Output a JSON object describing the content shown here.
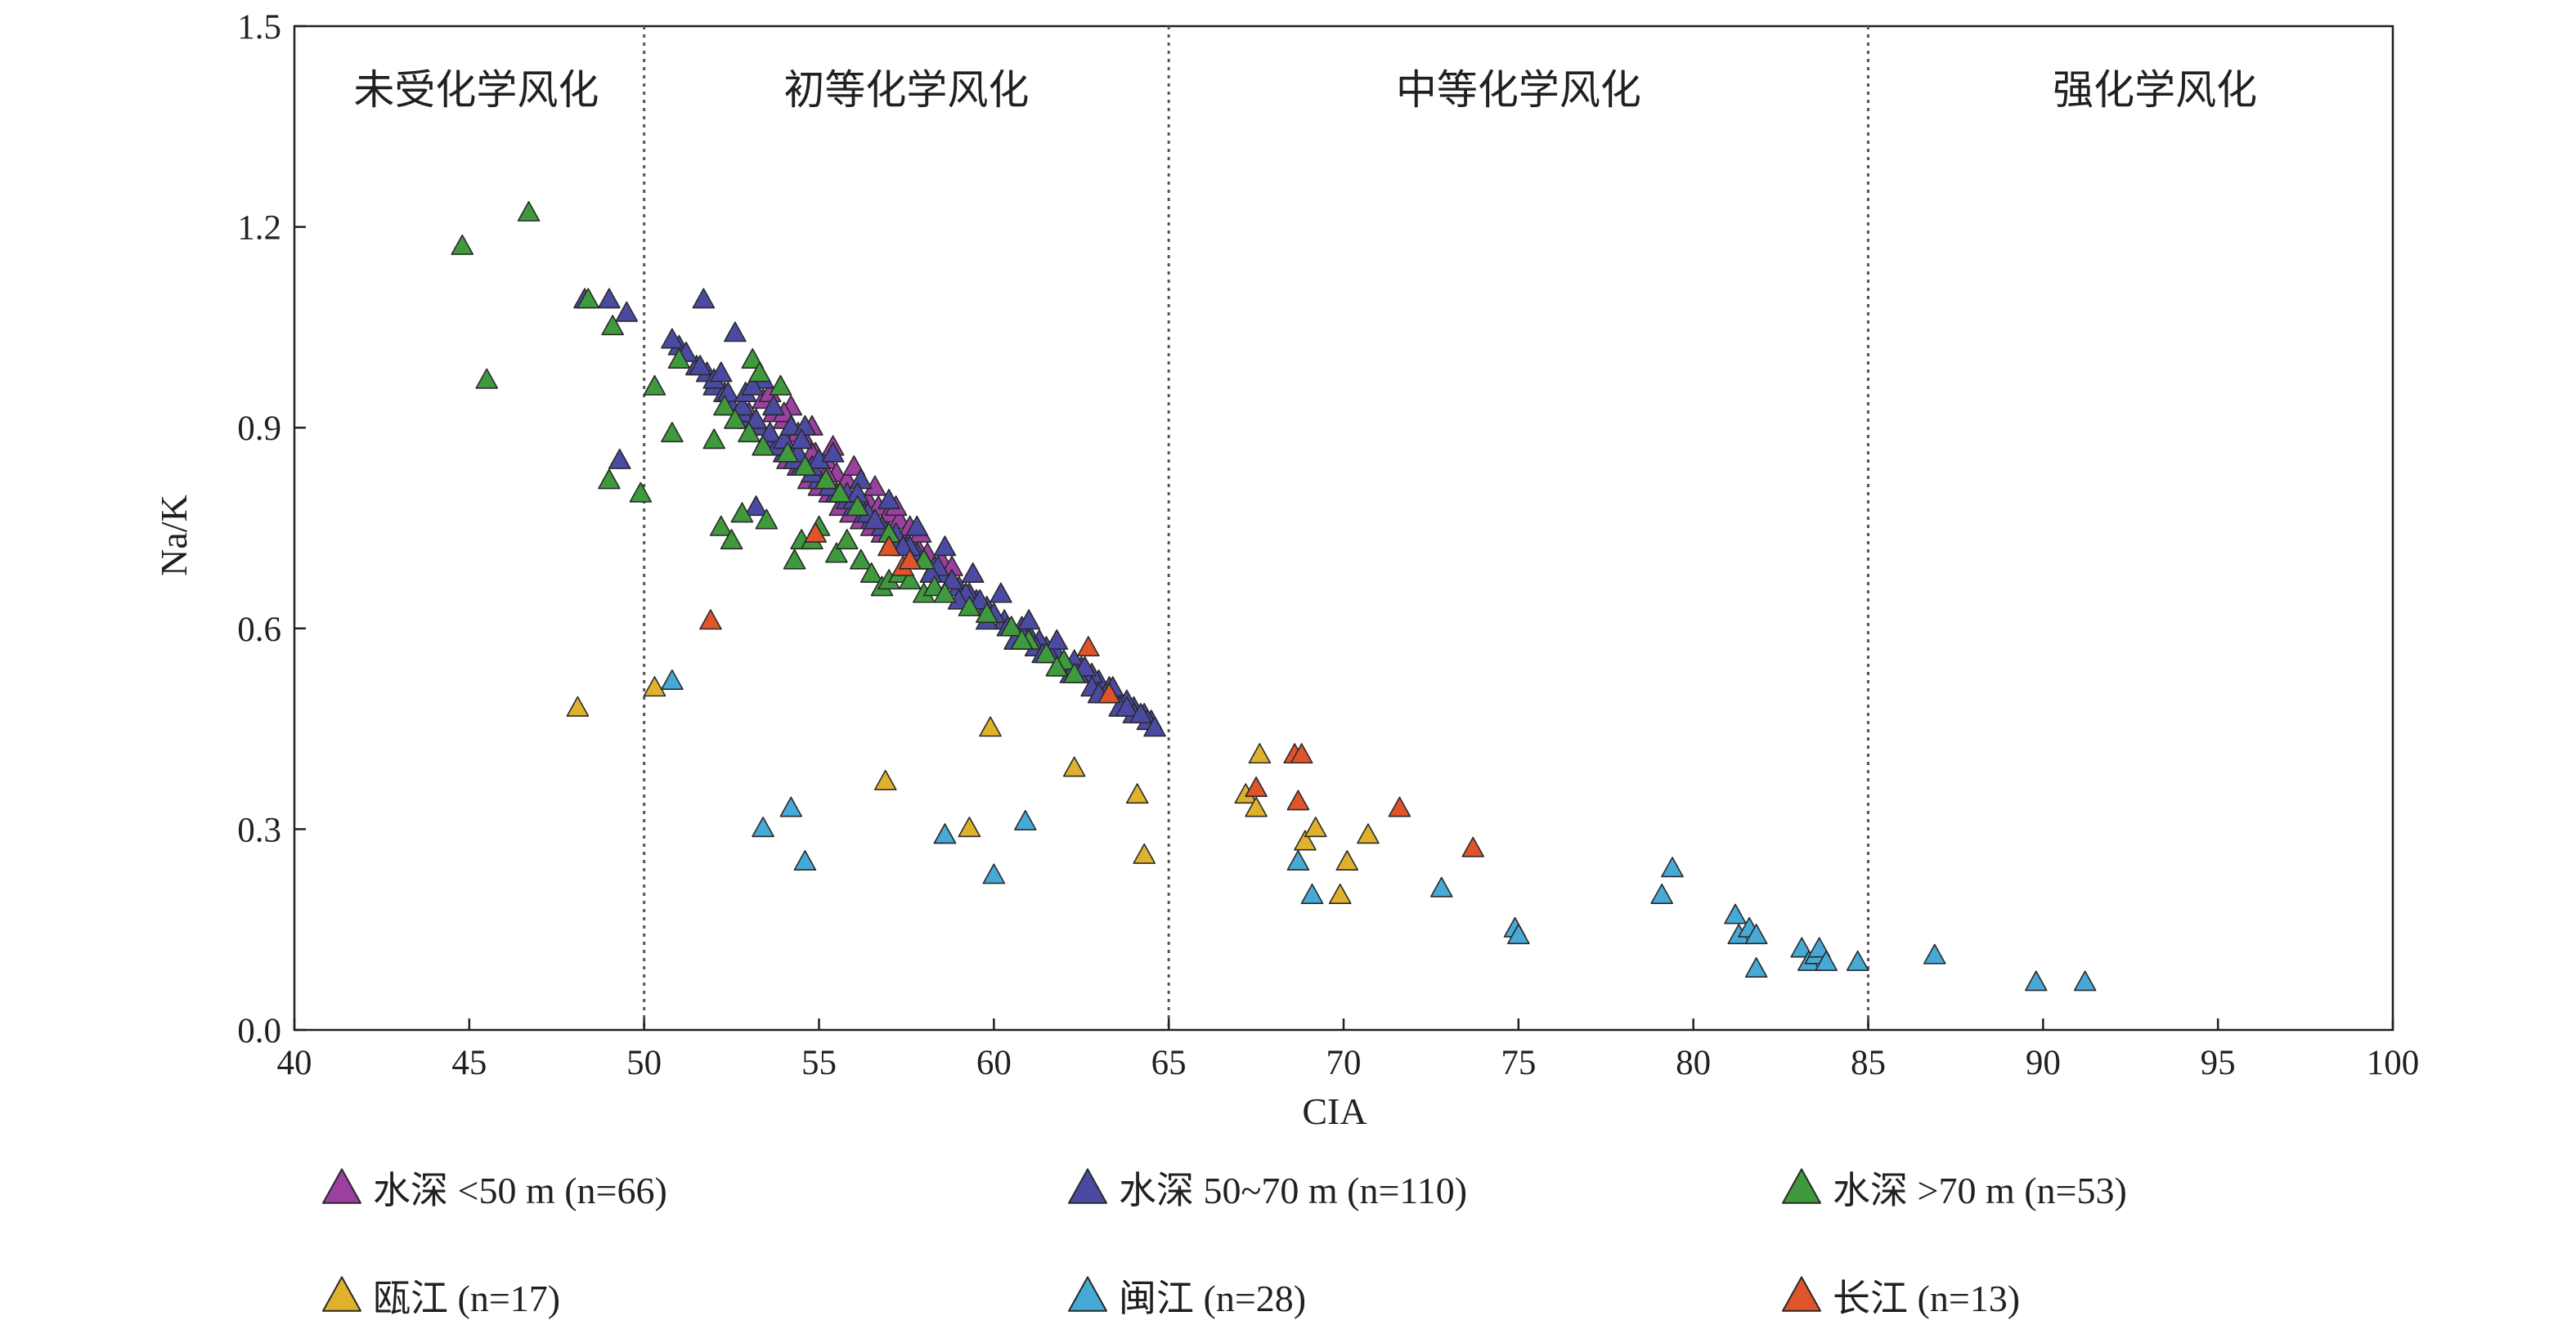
{
  "chart_data": {
    "type": "scatter",
    "xlabel": "CIA",
    "ylabel": "Na/K",
    "xlim": [
      40,
      100
    ],
    "ylim": [
      0,
      1.5
    ],
    "x_ticks": [
      "40",
      "45",
      "50",
      "55",
      "60",
      "65",
      "70",
      "75",
      "80",
      "85",
      "90",
      "95",
      "100"
    ],
    "y_ticks": [
      "0.0",
      "0.3",
      "0.6",
      "0.9",
      "1.2",
      "1.5"
    ],
    "x_tick_values": [
      40,
      45,
      50,
      55,
      60,
      65,
      70,
      75,
      80,
      85,
      90,
      95,
      100
    ],
    "y_tick_values": [
      0,
      0.3,
      0.6,
      0.9,
      1.2,
      1.5
    ],
    "grid": false,
    "marker": "triangle",
    "dividers": [
      50,
      65,
      85
    ],
    "regions": [
      {
        "label": "未受化学风化",
        "x_center": 45.2
      },
      {
        "label": "初等化学风化",
        "x_center": 57.5
      },
      {
        "label": "中等化学风化",
        "x_center": 75.0
      },
      {
        "label": "强化学风化",
        "x_center": 93.2
      }
    ],
    "legend_position": "bottom",
    "series": [
      {
        "name": "水深 <50 m",
        "n_label": "(n=66)",
        "color": "#9b3fa0",
        "x": [
          53.0,
          53.3,
          53.6,
          53.9,
          54.2,
          54.5,
          54.8,
          55.1,
          55.4,
          55.7,
          56.0,
          56.3,
          56.6,
          56.9,
          57.2,
          57.5,
          57.8,
          58.1,
          53.2,
          53.5,
          53.8,
          54.1,
          54.4,
          54.7,
          55.0,
          55.3,
          55.6,
          55.9,
          56.2,
          56.5,
          56.8,
          57.1,
          57.4,
          57.7,
          58.0,
          58.3,
          58.6,
          53.4,
          53.7,
          54.0,
          54.3,
          54.6,
          54.9,
          55.2,
          55.5,
          55.8,
          56.1,
          56.4,
          56.7,
          57.0,
          57.3,
          57.6,
          57.9,
          54.2,
          54.8,
          55.4,
          56.0,
          56.6,
          57.2,
          53.6,
          54.0,
          54.4,
          54.8,
          55.2,
          58.5,
          58.8
        ],
        "y": [
          0.92,
          0.9,
          0.89,
          0.87,
          0.86,
          0.84,
          0.83,
          0.81,
          0.8,
          0.79,
          0.78,
          0.77,
          0.76,
          0.75,
          0.74,
          0.73,
          0.72,
          0.71,
          0.9,
          0.88,
          0.87,
          0.85,
          0.84,
          0.82,
          0.81,
          0.8,
          0.78,
          0.77,
          0.76,
          0.75,
          0.74,
          0.73,
          0.72,
          0.71,
          0.7,
          0.69,
          0.68,
          0.94,
          0.92,
          0.91,
          0.89,
          0.88,
          0.86,
          0.85,
          0.83,
          0.82,
          0.8,
          0.79,
          0.78,
          0.77,
          0.76,
          0.75,
          0.74,
          0.93,
          0.9,
          0.87,
          0.84,
          0.81,
          0.78,
          0.95,
          0.92,
          0.89,
          0.86,
          0.83,
          0.7,
          0.69
        ]
      },
      {
        "name": "水深 50~70 m",
        "n_label": "(n=110)",
        "color": "#4b4aa2",
        "x": [
          48.3,
          49.0,
          49.5,
          51.0,
          51.5,
          52.0,
          52.5,
          53.0,
          53.5,
          54.0,
          54.5,
          55.0,
          55.5,
          56.0,
          56.5,
          57.0,
          57.5,
          58.0,
          58.5,
          59.0,
          59.5,
          60.0,
          60.5,
          61.0,
          61.5,
          62.0,
          62.5,
          63.0,
          63.5,
          64.0,
          64.5,
          51.8,
          52.3,
          52.8,
          53.3,
          53.8,
          54.3,
          54.8,
          55.3,
          55.8,
          56.3,
          56.8,
          57.3,
          57.8,
          58.3,
          58.8,
          59.3,
          59.8,
          60.3,
          60.8,
          61.3,
          61.8,
          62.3,
          62.8,
          63.3,
          63.8,
          64.3,
          50.8,
          51.2,
          51.6,
          52.0,
          52.4,
          52.8,
          53.2,
          53.6,
          54.0,
          54.4,
          54.8,
          55.2,
          55.6,
          56.0,
          56.4,
          56.8,
          57.2,
          57.6,
          58.0,
          58.4,
          58.8,
          59.2,
          59.6,
          60.0,
          60.4,
          60.8,
          61.2,
          61.6,
          62.0,
          62.4,
          62.8,
          63.2,
          63.6,
          64.0,
          64.4,
          64.6,
          52.6,
          53.4,
          54.2,
          55.0,
          55.8,
          56.6,
          57.4,
          58.2,
          59.0,
          59.8,
          60.6,
          61.4,
          62.2,
          63.0,
          63.8,
          49.3,
          53.2
        ],
        "y": [
          1.09,
          1.09,
          1.07,
          1.02,
          0.99,
          0.96,
          0.93,
          0.91,
          0.88,
          0.86,
          0.84,
          0.82,
          0.8,
          0.78,
          0.76,
          0.74,
          0.72,
          0.7,
          0.68,
          0.66,
          0.64,
          0.62,
          0.6,
          0.59,
          0.57,
          0.55,
          0.54,
          0.52,
          0.5,
          0.48,
          0.46,
          0.98,
          0.95,
          0.92,
          0.9,
          0.87,
          0.85,
          0.83,
          0.81,
          0.79,
          0.77,
          0.75,
          0.73,
          0.71,
          0.69,
          0.67,
          0.65,
          0.63,
          0.61,
          0.6,
          0.58,
          0.56,
          0.55,
          0.53,
          0.51,
          0.49,
          0.47,
          1.03,
          1.01,
          0.99,
          0.97,
          0.95,
          0.93,
          0.91,
          0.89,
          0.88,
          0.86,
          0.84,
          0.82,
          0.8,
          0.79,
          0.77,
          0.75,
          0.74,
          0.72,
          0.7,
          0.69,
          0.67,
          0.65,
          0.64,
          0.62,
          0.6,
          0.59,
          0.57,
          0.56,
          0.54,
          0.53,
          0.51,
          0.5,
          0.48,
          0.47,
          0.46,
          0.45,
          1.04,
          0.97,
          0.9,
          0.85,
          0.8,
          0.76,
          0.72,
          0.68,
          0.64,
          0.61,
          0.58,
          0.56,
          0.53,
          0.5,
          0.48,
          0.85,
          0.78
        ],
        "x_extra": [
          51.7,
          52.2,
          52.9,
          53.7,
          54.6,
          55.4,
          56.2,
          57.0,
          57.8,
          58.6,
          59.4,
          60.2,
          61.0,
          61.8,
          62.6,
          63.4,
          64.2,
          53.1,
          54.5,
          56.1
        ],
        "y_extra": [
          1.09,
          0.98,
          0.95,
          0.93,
          0.9,
          0.86,
          0.82,
          0.79,
          0.75,
          0.72,
          0.68,
          0.65,
          0.61,
          0.58,
          0.54,
          0.51,
          0.47,
          0.96,
          0.88,
          0.8
        ]
      },
      {
        "name": "水深 >70 m",
        "n_label": "(n=53)",
        "color": "#3f9a3d",
        "x": [
          44.8,
          45.5,
          46.7,
          48.4,
          49.0,
          49.1,
          49.9,
          50.3,
          50.8,
          51.0,
          52.0,
          52.2,
          52.5,
          52.8,
          53.1,
          53.3,
          53.5,
          53.9,
          54.3,
          54.5,
          54.8,
          55.0,
          55.5,
          55.8,
          56.2,
          56.5,
          56.8,
          57.0,
          57.3,
          57.6,
          58.0,
          58.3,
          58.6,
          59.3,
          59.8,
          60.5,
          61.0,
          61.5,
          62.0,
          62.3,
          52.3,
          52.6,
          53.0,
          53.4,
          54.1,
          54.6,
          55.2,
          55.6,
          56.1,
          57.0,
          58.0,
          60.8,
          61.8
        ],
        "y": [
          1.17,
          0.97,
          1.22,
          1.09,
          0.82,
          1.05,
          0.8,
          0.96,
          0.89,
          1.0,
          0.88,
          0.75,
          0.73,
          0.77,
          1.0,
          0.98,
          0.76,
          0.96,
          0.7,
          0.73,
          0.73,
          0.75,
          0.71,
          0.73,
          0.7,
          0.68,
          0.66,
          0.67,
          0.68,
          0.67,
          0.65,
          0.66,
          0.65,
          0.63,
          0.62,
          0.6,
          0.58,
          0.56,
          0.55,
          0.53,
          0.93,
          0.91,
          0.89,
          0.87,
          0.86,
          0.84,
          0.82,
          0.8,
          0.78,
          0.74,
          0.7,
          0.58,
          0.54
        ]
      },
      {
        "name": "瓯江",
        "n_label": "(n=17)",
        "color": "#e0b12c",
        "x": [
          48.1,
          50.3,
          56.9,
          58.6,
          59.3,
          59.9,
          62.3,
          64.1,
          64.3,
          67.2,
          67.5,
          67.6,
          68.9,
          69.2,
          69.9,
          70.1,
          70.7
        ],
        "y": [
          0.48,
          0.51,
          0.37,
          0.29,
          0.3,
          0.45,
          0.39,
          0.35,
          0.26,
          0.35,
          0.33,
          0.41,
          0.28,
          0.3,
          0.2,
          0.25,
          0.29
        ]
      },
      {
        "name": "闽江",
        "n_label": "(n=28)",
        "color": "#47a9d6",
        "x": [
          50.8,
          53.4,
          54.2,
          54.6,
          58.6,
          60.0,
          60.9,
          68.7,
          69.1,
          72.8,
          74.9,
          75.0,
          79.1,
          79.4,
          81.2,
          81.3,
          81.6,
          81.8,
          81.8,
          83.1,
          83.3,
          83.5,
          83.6,
          83.8,
          84.7,
          86.9,
          89.8,
          91.2
        ],
        "y": [
          0.52,
          0.3,
          0.33,
          0.25,
          0.29,
          0.23,
          0.31,
          0.25,
          0.2,
          0.21,
          0.15,
          0.14,
          0.2,
          0.24,
          0.17,
          0.14,
          0.15,
          0.14,
          0.09,
          0.12,
          0.1,
          0.11,
          0.12,
          0.1,
          0.1,
          0.11,
          0.07,
          0.07
        ]
      },
      {
        "name": "长江",
        "n_label": "(n=13)",
        "color": "#e0542a",
        "x": [
          51.9,
          54.9,
          57.4,
          57.6,
          62.7,
          63.3,
          67.5,
          68.6,
          68.7,
          68.8,
          71.6,
          73.7,
          57.0
        ],
        "y": [
          0.61,
          0.74,
          0.69,
          0.7,
          0.57,
          0.5,
          0.36,
          0.41,
          0.34,
          0.41,
          0.33,
          0.27,
          0.72
        ]
      }
    ]
  }
}
